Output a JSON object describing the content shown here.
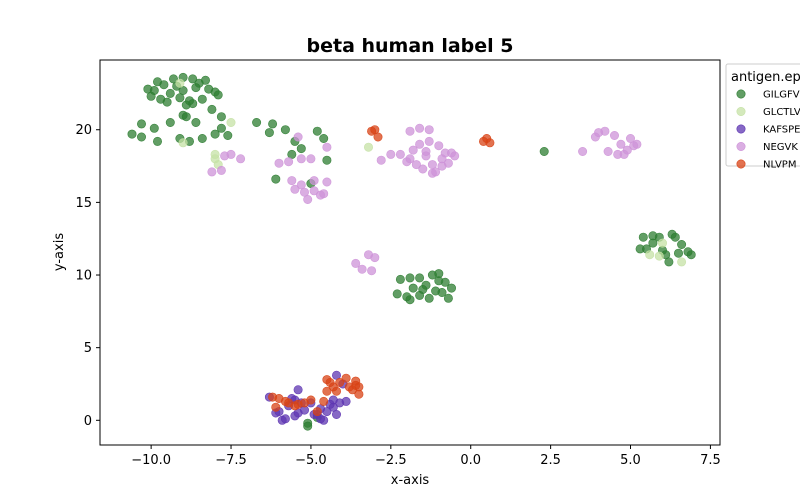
{
  "chart_data": {
    "type": "scatter",
    "title": "beta human label 5",
    "xlabel": "x-axis",
    "ylabel": "y-axis",
    "xlim": [
      -11.6,
      7.8
    ],
    "ylim": [
      -1.7,
      24.8
    ],
    "xticks": [
      -10.0,
      -7.5,
      -5.0,
      -2.5,
      0.0,
      2.5,
      5.0,
      7.5
    ],
    "xtick_labels": [
      "−10.0",
      "−7.5",
      "−5.0",
      "−2.5",
      "0.0",
      "2.5",
      "5.0",
      "7.5"
    ],
    "yticks": [
      0,
      5,
      10,
      15,
      20
    ],
    "ytick_labels": [
      "0",
      "5",
      "10",
      "15",
      "20"
    ],
    "grid": false,
    "legend": {
      "title": "antigen.ep",
      "placement": "outside-right-top"
    },
    "series": [
      {
        "name": "GILGFV",
        "color": "#2e7d32",
        "points": [
          [
            -9.3,
            23.5
          ],
          [
            -9.0,
            23.6
          ],
          [
            -8.7,
            23.5
          ],
          [
            -8.5,
            23.2
          ],
          [
            -8.2,
            22.8
          ],
          [
            -9.6,
            23.1
          ],
          [
            -9.9,
            22.7
          ],
          [
            -9.4,
            22.5
          ],
          [
            -9.1,
            22.2
          ],
          [
            -8.8,
            22.0
          ],
          [
            -8.4,
            22.1
          ],
          [
            -8.0,
            22.6
          ],
          [
            -8.9,
            21.7
          ],
          [
            -9.7,
            22.1
          ],
          [
            -10.1,
            22.8
          ],
          [
            -9.5,
            21.9
          ],
          [
            -8.6,
            22.9
          ],
          [
            -9.2,
            23.0
          ],
          [
            -8.3,
            23.4
          ],
          [
            -7.9,
            22.4
          ],
          [
            -10.0,
            22.3
          ],
          [
            -9.8,
            23.3
          ],
          [
            -8.7,
            21.8
          ],
          [
            -9.0,
            22.7
          ],
          [
            -8.1,
            21.4
          ],
          [
            -7.8,
            20.9
          ],
          [
            -8.6,
            20.5
          ],
          [
            -9.0,
            21.0
          ],
          [
            -9.4,
            20.5
          ],
          [
            -9.9,
            20.1
          ],
          [
            -10.3,
            20.4
          ],
          [
            -10.6,
            19.7
          ],
          [
            -10.3,
            19.5
          ],
          [
            -9.8,
            19.2
          ],
          [
            -9.1,
            19.4
          ],
          [
            -8.8,
            19.2
          ],
          [
            -8.4,
            19.4
          ],
          [
            -8.0,
            19.7
          ],
          [
            -7.6,
            19.6
          ],
          [
            -7.8,
            20.1
          ],
          [
            -8.9,
            20.9
          ],
          [
            -6.7,
            20.5
          ],
          [
            -6.2,
            20.4
          ],
          [
            -6.3,
            19.8
          ],
          [
            -5.8,
            20.0
          ],
          [
            -5.5,
            19.2
          ],
          [
            -5.3,
            18.7
          ],
          [
            -5.6,
            18.3
          ],
          [
            -4.8,
            19.9
          ],
          [
            -4.6,
            19.4
          ],
          [
            -4.5,
            17.9
          ],
          [
            -6.1,
            16.6
          ],
          [
            -5.0,
            16.3
          ],
          [
            -2.2,
            9.7
          ],
          [
            -1.9,
            9.8
          ],
          [
            -1.6,
            9.8
          ],
          [
            -1.2,
            10.0
          ],
          [
            -1.0,
            10.1
          ],
          [
            -0.8,
            9.5
          ],
          [
            -0.6,
            9.1
          ],
          [
            -1.4,
            9.3
          ],
          [
            -1.8,
            9.1
          ],
          [
            -1.1,
            8.9
          ],
          [
            -1.6,
            8.6
          ],
          [
            -2.0,
            8.5
          ],
          [
            -2.3,
            8.7
          ],
          [
            -1.3,
            8.4
          ],
          [
            -0.9,
            8.8
          ],
          [
            -0.7,
            8.4
          ],
          [
            -1.9,
            8.3
          ],
          [
            -1.5,
            9.0
          ],
          [
            -1.0,
            9.6
          ],
          [
            2.3,
            18.5
          ],
          [
            5.7,
            12.7
          ],
          [
            6.3,
            12.8
          ],
          [
            6.4,
            12.6
          ],
          [
            6.6,
            12.1
          ],
          [
            6.8,
            11.6
          ],
          [
            6.9,
            11.4
          ],
          [
            5.5,
            11.8
          ],
          [
            5.7,
            12.2
          ],
          [
            6.1,
            11.4
          ],
          [
            6.2,
            10.9
          ],
          [
            5.3,
            11.8
          ],
          [
            6.5,
            11.5
          ],
          [
            5.9,
            12.6
          ],
          [
            5.4,
            12.6
          ],
          [
            6.0,
            11.7
          ],
          [
            -5.1,
            -0.2
          ],
          [
            -5.1,
            -0.4
          ],
          [
            -4.8,
            0.2
          ]
        ]
      },
      {
        "name": "GLCTLV",
        "color": "#c5e1a5",
        "points": [
          [
            -9.0,
            19.1
          ],
          [
            -8.0,
            18.0
          ],
          [
            -7.5,
            20.5
          ],
          [
            -7.9,
            17.6
          ],
          [
            -3.2,
            18.8
          ],
          [
            -9.1,
            23.2
          ],
          [
            -8.0,
            18.3
          ],
          [
            5.9,
            11.3
          ],
          [
            6.0,
            12.2
          ],
          [
            6.6,
            10.9
          ],
          [
            5.6,
            11.4
          ]
        ]
      },
      {
        "name": "KAFSPE",
        "color": "#5e35b1",
        "points": [
          [
            -6.1,
            0.5
          ],
          [
            -5.9,
            0.0
          ],
          [
            -5.7,
            1.0
          ],
          [
            -5.5,
            1.4
          ],
          [
            -5.3,
            1.2
          ],
          [
            -5.4,
            0.5
          ],
          [
            -5.2,
            0.7
          ],
          [
            -5.0,
            1.2
          ],
          [
            -4.8,
            0.4
          ],
          [
            -4.7,
            0.1
          ],
          [
            -4.5,
            0.6
          ],
          [
            -4.3,
            0.9
          ],
          [
            -4.2,
            0.4
          ],
          [
            -4.1,
            1.2
          ],
          [
            -4.3,
            1.4
          ],
          [
            -3.9,
            1.3
          ],
          [
            -4.2,
            3.1
          ],
          [
            -5.4,
            2.1
          ],
          [
            -4.9,
            0.4
          ],
          [
            -6.3,
            1.6
          ],
          [
            -6.0,
            0.6
          ],
          [
            -5.8,
            0.1
          ],
          [
            -5.6,
            1.5
          ],
          [
            -5.5,
            0.3
          ],
          [
            -4.6,
            0.0
          ],
          [
            -4.4,
            1.1
          ],
          [
            -4.7,
            0.8
          ],
          [
            -4.0,
            2.5
          ]
        ]
      },
      {
        "name": "NEGVK",
        "color": "#ce93d8",
        "points": [
          [
            -8.1,
            17.1
          ],
          [
            -7.8,
            17.2
          ],
          [
            -7.7,
            18.2
          ],
          [
            -7.5,
            18.3
          ],
          [
            -7.2,
            18.0
          ],
          [
            -6.0,
            17.7
          ],
          [
            -5.7,
            17.8
          ],
          [
            -5.3,
            18.0
          ],
          [
            -5.0,
            18.0
          ],
          [
            -4.5,
            18.8
          ],
          [
            -5.4,
            19.5
          ],
          [
            -5.6,
            16.5
          ],
          [
            -5.5,
            15.9
          ],
          [
            -5.2,
            15.7
          ],
          [
            -4.9,
            15.8
          ],
          [
            -4.7,
            15.5
          ],
          [
            -4.5,
            16.4
          ],
          [
            -4.9,
            16.5
          ],
          [
            -5.1,
            15.2
          ],
          [
            -4.6,
            15.6
          ],
          [
            -5.3,
            16.2
          ],
          [
            -3.6,
            10.8
          ],
          [
            -3.4,
            10.4
          ],
          [
            -3.2,
            11.4
          ],
          [
            -3.0,
            11.2
          ],
          [
            -3.1,
            10.3
          ],
          [
            -2.2,
            18.3
          ],
          [
            -1.9,
            18.0
          ],
          [
            -1.7,
            17.6
          ],
          [
            -1.5,
            17.3
          ],
          [
            -1.2,
            17.6
          ],
          [
            -0.9,
            18.0
          ],
          [
            -0.6,
            18.4
          ],
          [
            -0.5,
            18.2
          ],
          [
            -1.8,
            18.6
          ],
          [
            -1.6,
            19.0
          ],
          [
            -1.3,
            19.2
          ],
          [
            -1.0,
            18.9
          ],
          [
            -0.8,
            18.4
          ],
          [
            -0.7,
            17.7
          ],
          [
            -1.1,
            17.1
          ],
          [
            -1.4,
            18.2
          ],
          [
            -2.0,
            17.8
          ],
          [
            -1.9,
            19.9
          ],
          [
            -1.6,
            20.1
          ],
          [
            -1.3,
            20.0
          ],
          [
            -2.5,
            18.3
          ],
          [
            -0.9,
            17.5
          ],
          [
            -1.2,
            17.0
          ],
          [
            3.5,
            18.5
          ],
          [
            3.9,
            19.5
          ],
          [
            4.2,
            19.9
          ],
          [
            4.5,
            19.6
          ],
          [
            4.7,
            19.0
          ],
          [
            4.9,
            18.6
          ],
          [
            5.0,
            19.4
          ],
          [
            5.1,
            18.9
          ],
          [
            4.6,
            18.3
          ],
          [
            4.3,
            18.5
          ],
          [
            4.0,
            19.8
          ],
          [
            5.2,
            19.0
          ],
          [
            4.8,
            18.3
          ],
          [
            -2.8,
            17.9
          ],
          [
            -1.4,
            18.5
          ]
        ]
      },
      {
        "name": "NLVPM",
        "color": "#d84315",
        "points": [
          [
            -3.0,
            20.0
          ],
          [
            -2.9,
            19.5
          ],
          [
            -3.1,
            19.9
          ],
          [
            0.5,
            19.4
          ],
          [
            0.6,
            19.1
          ],
          [
            0.4,
            19.2
          ],
          [
            -6.2,
            1.6
          ],
          [
            -6.0,
            1.5
          ],
          [
            -5.7,
            1.2
          ],
          [
            -5.5,
            1.0
          ],
          [
            -5.2,
            1.2
          ],
          [
            -5.0,
            1.4
          ],
          [
            -4.8,
            0.6
          ],
          [
            -4.6,
            1.3
          ],
          [
            -4.5,
            2.0
          ],
          [
            -4.4,
            2.6
          ],
          [
            -4.1,
            2.6
          ],
          [
            -3.9,
            2.9
          ],
          [
            -3.8,
            2.3
          ],
          [
            -3.7,
            2.1
          ],
          [
            -3.6,
            2.4
          ],
          [
            -3.5,
            1.8
          ],
          [
            -3.6,
            2.7
          ],
          [
            -4.3,
            2.3
          ],
          [
            -6.1,
            0.9
          ],
          [
            -5.8,
            1.3
          ],
          [
            -5.4,
            1.1
          ],
          [
            -4.5,
            2.8
          ],
          [
            -3.5,
            2.3
          ],
          [
            -4.2,
            2.0
          ]
        ]
      }
    ]
  }
}
